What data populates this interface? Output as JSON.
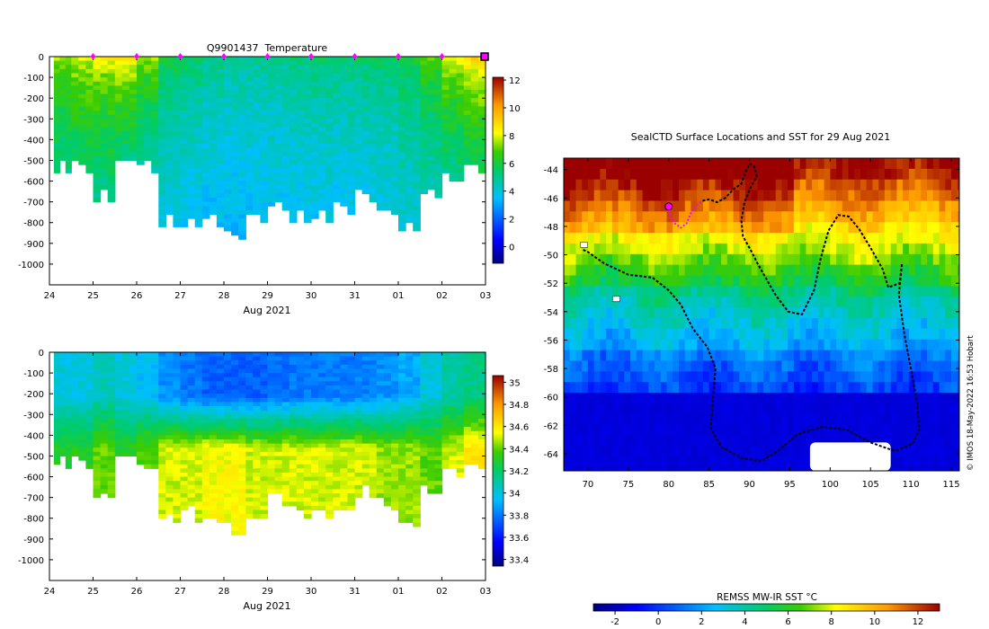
{
  "chart_data": [
    {
      "type": "heatmap",
      "title": "Q9901437  Temperature",
      "xlabel": "Aug 2021",
      "xticks": [
        "24",
        "25",
        "26",
        "27",
        "28",
        "29",
        "30",
        "31",
        "01",
        "02",
        "03"
      ],
      "yticks": [
        "0",
        "-100",
        "-200",
        "-300",
        "-400",
        "-500",
        "-600",
        "-700",
        "-800",
        "-900",
        "-1000"
      ],
      "ylim": [
        -1100,
        0
      ],
      "colorbar": {
        "min": -1.2,
        "max": 12.2,
        "ticks": [
          "12",
          "10",
          "8",
          "6",
          "4",
          "2",
          "0"
        ],
        "tick_values": [
          12,
          10,
          8,
          6,
          4,
          2,
          0
        ]
      },
      "marker_days": [
        25,
        26,
        27,
        28,
        29,
        30,
        31,
        32,
        33
      ],
      "end_marker_day": 33.98,
      "profiles": [
        {
          "day": 24.1,
          "depth": 550,
          "surf": 7.5,
          "deep": 5.2
        },
        {
          "day": 24.5,
          "depth": 550,
          "surf": 8.0,
          "deep": 5.5
        },
        {
          "day": 25.0,
          "depth": 700,
          "surf": 8.3,
          "deep": 5.0
        },
        {
          "day": 25.5,
          "depth": 500,
          "surf": 8.6,
          "deep": 5.2
        },
        {
          "day": 26.0,
          "depth": 550,
          "surf": 7.6,
          "deep": 4.8
        },
        {
          "day": 26.5,
          "depth": 810,
          "surf": 6.0,
          "deep": 3.8
        },
        {
          "day": 27.0,
          "depth": 810,
          "surf": 5.6,
          "deep": 3.6
        },
        {
          "day": 27.5,
          "depth": 810,
          "surf": 5.2,
          "deep": 3.5
        },
        {
          "day": 28.0,
          "depth": 870,
          "surf": 5.0,
          "deep": 3.4
        },
        {
          "day": 28.5,
          "depth": 800,
          "surf": 5.0,
          "deep": 3.5
        },
        {
          "day": 29.0,
          "depth": 730,
          "surf": 5.2,
          "deep": 3.6
        },
        {
          "day": 29.5,
          "depth": 800,
          "surf": 5.3,
          "deep": 3.6
        },
        {
          "day": 30.0,
          "depth": 790,
          "surf": 5.4,
          "deep": 3.7
        },
        {
          "day": 30.5,
          "depth": 760,
          "surf": 5.4,
          "deep": 3.7
        },
        {
          "day": 31.0,
          "depth": 700,
          "surf": 5.5,
          "deep": 3.8
        },
        {
          "day": 31.5,
          "depth": 760,
          "surf": 5.6,
          "deep": 3.8
        },
        {
          "day": 32.0,
          "depth": 840,
          "surf": 6.0,
          "deep": 4.0
        },
        {
          "day": 32.5,
          "depth": 680,
          "surf": 7.0,
          "deep": 4.5
        },
        {
          "day": 33.0,
          "depth": 600,
          "surf": 8.2,
          "deep": 5.0
        },
        {
          "day": 33.5,
          "depth": 550,
          "surf": 9.0,
          "deep": 5.6
        }
      ]
    },
    {
      "type": "heatmap",
      "title": "",
      "xlabel": "Aug 2021",
      "xticks": [
        "24",
        "25",
        "26",
        "27",
        "28",
        "29",
        "30",
        "31",
        "01",
        "02",
        "03"
      ],
      "yticks": [
        "0",
        "-100",
        "-200",
        "-300",
        "-400",
        "-500",
        "-600",
        "-700",
        "-800",
        "-900",
        "-1000"
      ],
      "ylim": [
        -1100,
        0
      ],
      "colorbar": {
        "min": 33.34,
        "max": 35.06,
        "ticks": [
          "35",
          "34.8",
          "34.6",
          "34.4",
          "34.2",
          "34",
          "33.8",
          "33.6",
          "33.4"
        ],
        "tick_values": [
          35,
          34.8,
          34.6,
          34.4,
          34.2,
          34,
          33.8,
          33.6,
          33.4
        ]
      },
      "profiles": [
        {
          "day": 24.1,
          "depth": 550,
          "surf": 34.0,
          "deep": 34.3
        },
        {
          "day": 24.5,
          "depth": 550,
          "surf": 34.0,
          "deep": 34.3
        },
        {
          "day": 25.0,
          "depth": 700,
          "surf": 34.05,
          "deep": 34.4
        },
        {
          "day": 25.5,
          "depth": 500,
          "surf": 34.0,
          "deep": 34.3
        },
        {
          "day": 26.0,
          "depth": 550,
          "surf": 33.95,
          "deep": 34.4
        },
        {
          "day": 26.5,
          "depth": 810,
          "surf": 33.85,
          "deep": 34.5
        },
        {
          "day": 27.0,
          "depth": 810,
          "surf": 33.8,
          "deep": 34.5
        },
        {
          "day": 27.5,
          "depth": 810,
          "surf": 33.75,
          "deep": 34.55
        },
        {
          "day": 28.0,
          "depth": 870,
          "surf": 33.75,
          "deep": 34.55
        },
        {
          "day": 28.5,
          "depth": 800,
          "surf": 33.75,
          "deep": 34.5
        },
        {
          "day": 29.0,
          "depth": 730,
          "surf": 33.78,
          "deep": 34.5
        },
        {
          "day": 29.5,
          "depth": 800,
          "surf": 33.8,
          "deep": 34.5
        },
        {
          "day": 30.0,
          "depth": 790,
          "surf": 33.8,
          "deep": 34.5
        },
        {
          "day": 30.5,
          "depth": 760,
          "surf": 33.8,
          "deep": 34.5
        },
        {
          "day": 31.0,
          "depth": 700,
          "surf": 33.82,
          "deep": 34.5
        },
        {
          "day": 31.5,
          "depth": 760,
          "surf": 33.85,
          "deep": 34.45
        },
        {
          "day": 32.0,
          "depth": 840,
          "surf": 33.9,
          "deep": 34.45
        },
        {
          "day": 32.5,
          "depth": 680,
          "surf": 34.0,
          "deep": 34.4
        },
        {
          "day": 33.0,
          "depth": 600,
          "surf": 34.1,
          "deep": 34.5
        },
        {
          "day": 33.5,
          "depth": 550,
          "surf": 34.15,
          "deep": 34.6
        }
      ]
    },
    {
      "type": "heatmap",
      "title": "SealCTD Surface Locations and SST for 29 Aug 2021",
      "xlabel": "",
      "xticks": [
        "70",
        "75",
        "80",
        "85",
        "90",
        "95",
        "100",
        "105",
        "110",
        "115"
      ],
      "xtick_values": [
        70,
        75,
        80,
        85,
        90,
        95,
        100,
        105,
        110,
        115
      ],
      "yticks": [
        "-44",
        "-46",
        "-48",
        "-50",
        "-52",
        "-54",
        "-56",
        "-58",
        "-60",
        "-62",
        "-64"
      ],
      "ytick_values": [
        -44,
        -46,
        -48,
        -50,
        -52,
        -54,
        -56,
        -58,
        -60,
        -62,
        -64
      ],
      "xlim": [
        67,
        116
      ],
      "ylim": [
        -65.2,
        -43.2
      ],
      "colorbar": {
        "label": "REMSS MW-IR SST °C",
        "min": -3,
        "max": 13,
        "ticks": [
          "-2",
          "0",
          "2",
          "4",
          "6",
          "8",
          "10",
          "12"
        ],
        "tick_values": [
          -2,
          0,
          2,
          4,
          6,
          8,
          10,
          12
        ]
      },
      "current_position": {
        "lon": 80.0,
        "lat": -46.6
      },
      "track_recent": [
        [
          80.0,
          -46.6
        ],
        [
          80.2,
          -47.3
        ],
        [
          80.8,
          -47.8
        ],
        [
          81.5,
          -48.1
        ],
        [
          82.2,
          -47.8
        ],
        [
          82.8,
          -47.0
        ],
        [
          83.5,
          -46.5
        ],
        [
          84.2,
          -46.2
        ]
      ],
      "track_history": [
        [
          84.2,
          -46.2
        ],
        [
          85.0,
          -46.1
        ],
        [
          86.0,
          -46.3
        ],
        [
          87.0,
          -46.0
        ],
        [
          88.0,
          -45.4
        ],
        [
          89.0,
          -45.0
        ],
        [
          89.5,
          -44.2
        ],
        [
          90.0,
          -43.6
        ],
        [
          90.6,
          -43.8
        ],
        [
          90.9,
          -44.5
        ],
        [
          90.2,
          -45.2
        ],
        [
          89.4,
          -46.3
        ],
        [
          89.0,
          -47.6
        ],
        [
          89.2,
          -48.7
        ],
        [
          90.1,
          -49.6
        ],
        [
          91.0,
          -50.6
        ],
        [
          92.0,
          -51.6
        ],
        [
          93.2,
          -52.8
        ],
        [
          94.8,
          -54.0
        ],
        [
          96.5,
          -54.2
        ],
        [
          98.0,
          -52.5
        ],
        [
          98.8,
          -50.3
        ],
        [
          99.8,
          -48.3
        ],
        [
          101.0,
          -47.2
        ],
        [
          102.3,
          -47.3
        ],
        [
          103.6,
          -48.2
        ],
        [
          105.0,
          -49.5
        ],
        [
          106.5,
          -51.0
        ],
        [
          107.2,
          -52.3
        ],
        [
          108.6,
          -52.0
        ],
        [
          108.9,
          -50.6
        ],
        [
          108.5,
          -52.8
        ],
        [
          109.2,
          -55.6
        ],
        [
          110.0,
          -58.0
        ],
        [
          110.8,
          -60.5
        ],
        [
          111.0,
          -62.3
        ],
        [
          110.2,
          -63.3
        ],
        [
          108.0,
          -63.8
        ],
        [
          105.0,
          -63.2
        ],
        [
          102.0,
          -62.3
        ],
        [
          99.0,
          -62.1
        ],
        [
          96.0,
          -62.6
        ],
        [
          93.5,
          -63.8
        ],
        [
          91.5,
          -64.5
        ],
        [
          89.0,
          -64.3
        ],
        [
          86.5,
          -63.5
        ],
        [
          85.2,
          -62.2
        ],
        [
          85.5,
          -60.0
        ],
        [
          85.8,
          -58.0
        ],
        [
          84.8,
          -56.5
        ],
        [
          83.0,
          -55.2
        ],
        [
          81.5,
          -53.5
        ],
        [
          80.0,
          -52.5
        ],
        [
          78.0,
          -51.6
        ],
        [
          75.0,
          -51.4
        ],
        [
          72.0,
          -50.6
        ],
        [
          70.0,
          -49.8
        ],
        [
          69.2,
          -49.6
        ]
      ],
      "ice_patch": {
        "lon_min": 97.5,
        "lon_max": 107.5,
        "lat_min": -63.2,
        "lat_max": -65.2
      },
      "island_points": [
        [
          69.5,
          -49.3
        ],
        [
          73.5,
          -53.1
        ]
      ],
      "watermark": "© IMOS 18-May-2022 16:53 Hobart"
    }
  ]
}
